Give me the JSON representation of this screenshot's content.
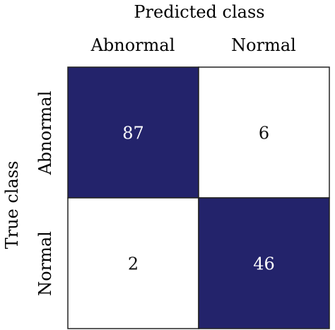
{
  "chart_data": {
    "type": "heatmap",
    "title": "",
    "xlabel": "Predicted class",
    "ylabel": "True class",
    "x_categories": [
      "Abnormal",
      "Normal"
    ],
    "y_categories": [
      "Abnormal",
      "Normal"
    ],
    "values": [
      [
        87,
        6
      ],
      [
        2,
        46
      ]
    ],
    "colors": {
      "high": "#23236b",
      "low": "#ffffff",
      "high_text": "#ffffff",
      "low_text": "#111111",
      "border": "#222222"
    },
    "grid": false,
    "legend": "none"
  }
}
